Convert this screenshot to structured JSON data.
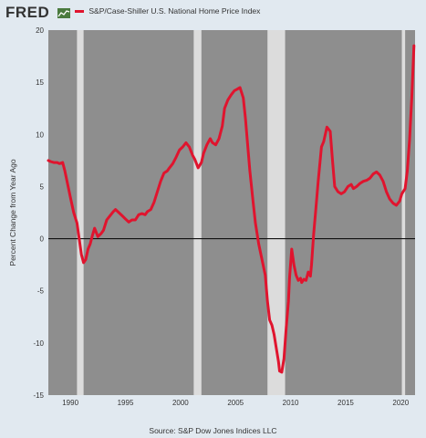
{
  "header": {
    "logo_text": "FRED",
    "logo_icon": "chart-line-icon"
  },
  "legend": {
    "entries": [
      "S&P/Case-Shiller U.S. National Home Price Index"
    ],
    "placement": "top-left"
  },
  "source": "Source: S&P Dow Jones Indices LLC",
  "colors": {
    "series": "#e0142e",
    "plot_background": "#8e8e8e",
    "recession": "#dcdcdc",
    "page_background": "#e1e9f0",
    "zero_line": "#111111"
  },
  "chart_data": {
    "type": "line",
    "title": "",
    "xlabel": "",
    "ylabel": "Percent Change from Year Ago",
    "xlim": [
      1988.0,
      2021.3
    ],
    "ylim": [
      -15,
      20
    ],
    "x_ticks": [
      1990,
      1995,
      2000,
      2005,
      2010,
      2015,
      2020
    ],
    "y_ticks": [
      20,
      15,
      10,
      5,
      0,
      -5,
      -10,
      -15
    ],
    "grid": false,
    "zero_line": true,
    "recessions": [
      [
        1990.6,
        1991.2
      ],
      [
        2001.2,
        2001.9
      ],
      [
        2007.9,
        2009.5
      ],
      [
        2020.1,
        2020.4
      ]
    ],
    "series": [
      {
        "name": "S&P/Case-Shiller U.S. National Home Price Index",
        "x": [
          1988.0,
          1988.2,
          1988.5,
          1988.8,
          1989.0,
          1989.3,
          1989.5,
          1989.8,
          1990.0,
          1990.3,
          1990.6,
          1990.8,
          1991.0,
          1991.2,
          1991.4,
          1991.6,
          1991.8,
          1992.0,
          1992.2,
          1992.5,
          1992.8,
          1993.0,
          1993.3,
          1993.6,
          1993.9,
          1994.1,
          1994.4,
          1994.7,
          1995.0,
          1995.3,
          1995.6,
          1995.9,
          1996.2,
          1996.5,
          1996.8,
          1997.0,
          1997.3,
          1997.6,
          1997.9,
          1998.2,
          1998.5,
          1998.8,
          1999.0,
          1999.3,
          1999.6,
          1999.9,
          2000.2,
          2000.5,
          2000.8,
          2001.1,
          2001.3,
          2001.6,
          2001.9,
          2002.1,
          2002.4,
          2002.7,
          2002.9,
          2003.2,
          2003.5,
          2003.8,
          2004.0,
          2004.3,
          2004.6,
          2004.9,
          2005.1,
          2005.4,
          2005.7,
          2005.9,
          2006.1,
          2006.3,
          2006.6,
          2006.8,
          2007.1,
          2007.4,
          2007.7,
          2007.9,
          2008.1,
          2008.3,
          2008.5,
          2008.7,
          2008.9,
          2009.0,
          2009.2,
          2009.4,
          2009.6,
          2009.8,
          2009.9,
          2010.1,
          2010.3,
          2010.5,
          2010.7,
          2010.9,
          2011.0,
          2011.2,
          2011.4,
          2011.6,
          2011.8,
          2011.9,
          2012.1,
          2012.3,
          2012.5,
          2012.8,
          2013.0,
          2013.3,
          2013.6,
          2013.8,
          2014.0,
          2014.3,
          2014.6,
          2014.9,
          2015.2,
          2015.5,
          2015.7,
          2016.0,
          2016.3,
          2016.6,
          2016.9,
          2017.2,
          2017.5,
          2017.8,
          2018.1,
          2018.4,
          2018.7,
          2019.0,
          2019.3,
          2019.6,
          2019.9,
          2020.1,
          2020.4,
          2020.6,
          2020.8,
          2021.0,
          2021.2
        ],
        "values": [
          7.5,
          7.4,
          7.3,
          7.3,
          7.2,
          7.3,
          6.5,
          5.0,
          4.0,
          2.5,
          1.5,
          0.0,
          -1.5,
          -2.3,
          -2.0,
          -1.0,
          -0.5,
          0.3,
          1.0,
          0.2,
          0.5,
          0.8,
          1.8,
          2.2,
          2.6,
          2.8,
          2.5,
          2.2,
          1.9,
          1.6,
          1.8,
          1.8,
          2.3,
          2.4,
          2.3,
          2.6,
          2.8,
          3.5,
          4.5,
          5.5,
          6.3,
          6.5,
          6.8,
          7.2,
          7.8,
          8.5,
          8.8,
          9.2,
          8.8,
          8.0,
          7.6,
          6.8,
          7.3,
          8.2,
          9.0,
          9.6,
          9.2,
          9.0,
          9.6,
          10.8,
          12.5,
          13.3,
          13.8,
          14.2,
          14.3,
          14.5,
          13.5,
          11.5,
          9.0,
          6.5,
          3.5,
          1.5,
          -0.5,
          -2.0,
          -3.5,
          -6.0,
          -7.8,
          -8.3,
          -9.2,
          -10.5,
          -11.8,
          -12.7,
          -12.8,
          -11.5,
          -8.5,
          -6.0,
          -3.8,
          -1.0,
          -2.5,
          -3.5,
          -4.0,
          -3.8,
          -4.2,
          -3.9,
          -4.0,
          -3.2,
          -3.6,
          -2.5,
          0.5,
          3.0,
          5.5,
          8.8,
          9.3,
          10.7,
          10.3,
          7.5,
          5.0,
          4.5,
          4.3,
          4.5,
          5.0,
          5.2,
          4.8,
          5.0,
          5.3,
          5.5,
          5.6,
          5.8,
          6.2,
          6.4,
          6.1,
          5.5,
          4.5,
          3.8,
          3.4,
          3.2,
          3.6,
          4.3,
          4.8,
          6.5,
          9.5,
          13.5,
          18.5
        ]
      }
    ]
  }
}
